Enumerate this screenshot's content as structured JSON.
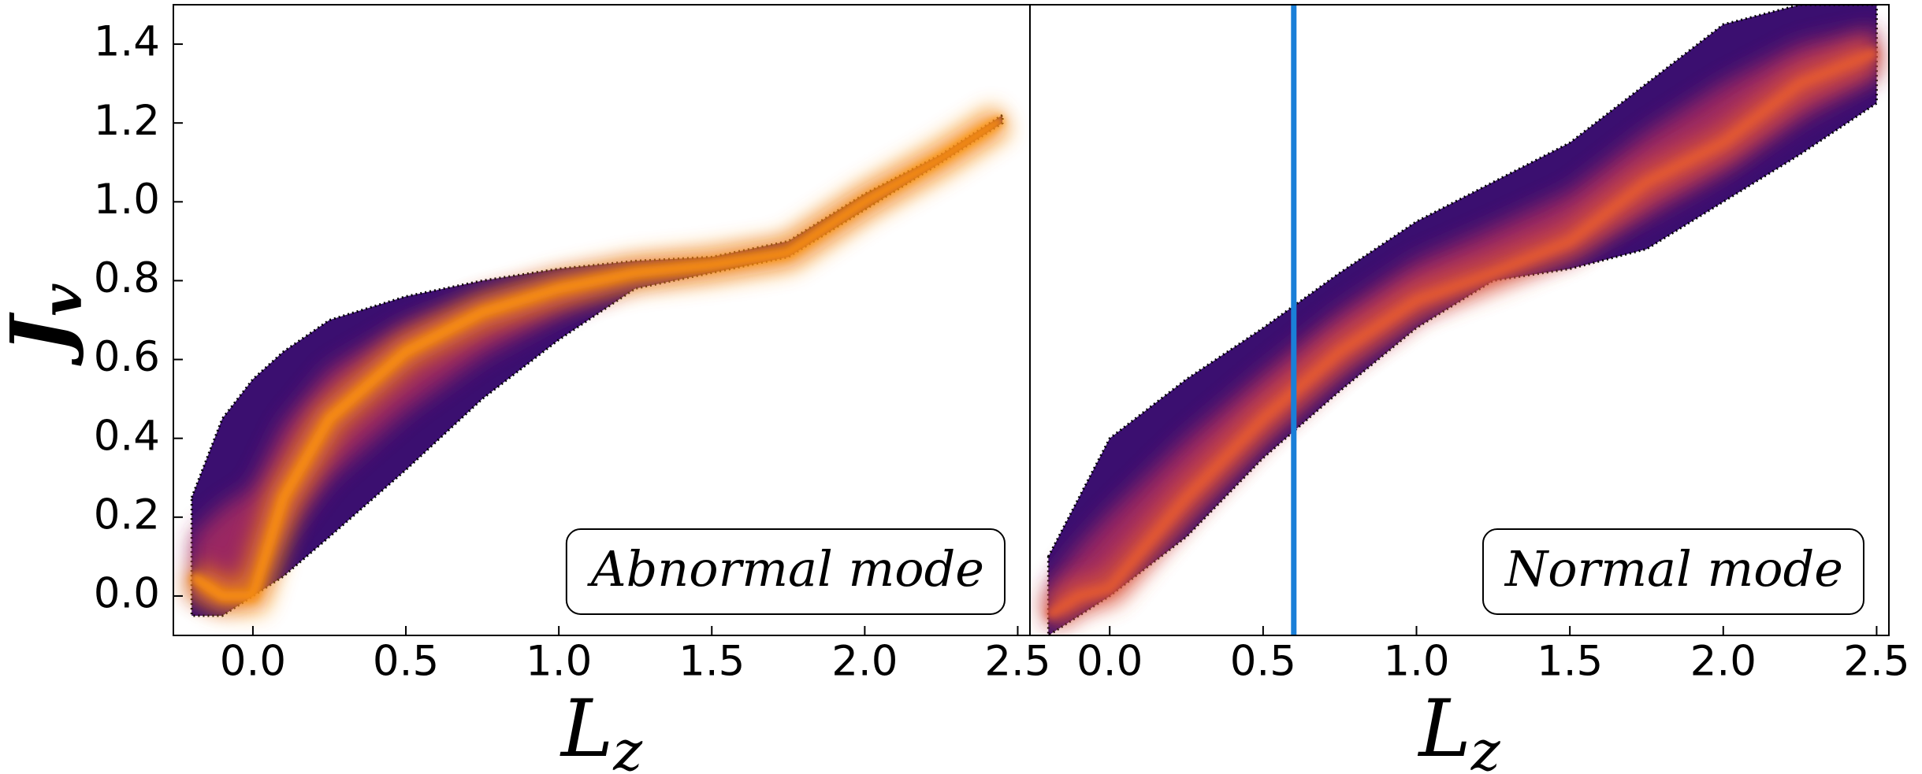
{
  "chart_data": [
    {
      "type": "density",
      "annotation": "Abnormal mode",
      "xlabel": "L",
      "xlabel_subscript": "z",
      "ylabel": "J",
      "ylabel_subscript": "v",
      "xlim": [
        -0.26,
        2.54
      ],
      "ylim": [
        -0.1,
        1.5
      ],
      "xticks": [
        {
          "value": 0,
          "label": "0.0"
        },
        0.5,
        {
          "value": 1,
          "label": "1.0"
        },
        1.5,
        {
          "value": 2,
          "label": "2.0"
        },
        2.5
      ],
      "yticks": [
        {
          "value": 0,
          "label": "0.0"
        },
        0.2,
        0.4,
        0.6,
        0.8,
        {
          "value": 1,
          "label": "1.0"
        },
        1.2,
        1.4
      ],
      "x": [
        -0.2,
        -0.1,
        0,
        0.1,
        0.25,
        0.5,
        0.75,
        1.0,
        1.25,
        1.5,
        1.75,
        2.0,
        2.25,
        2.45
      ],
      "upper": [
        0.25,
        0.45,
        0.55,
        0.62,
        0.7,
        0.76,
        0.8,
        0.83,
        0.85,
        0.86,
        0.9,
        1.02,
        1.12,
        1.22
      ],
      "ridge": [
        0.05,
        0.0,
        0.0,
        0.25,
        0.45,
        0.62,
        0.72,
        0.78,
        0.82,
        0.84,
        0.87,
        1.0,
        1.11,
        1.21
      ],
      "lower": [
        -0.05,
        -0.05,
        0.0,
        0.05,
        0.15,
        0.32,
        0.5,
        0.65,
        0.78,
        0.82,
        0.86,
        0.98,
        1.1,
        1.2
      ],
      "envelope_color": "#3b0f70",
      "ridge_color": "#f98e09"
    },
    {
      "type": "density",
      "annotation": "Normal mode",
      "xlabel": "L",
      "xlabel_subscript": "z",
      "xlim": [
        -0.26,
        2.54
      ],
      "ylim": [
        -0.1,
        1.5
      ],
      "xticks": [
        {
          "value": 0,
          "label": "0.0"
        },
        0.5,
        {
          "value": 1,
          "label": "1.0"
        },
        1.5,
        {
          "value": 2,
          "label": "2.0"
        },
        2.5
      ],
      "x": [
        -0.2,
        -0.1,
        0,
        0.25,
        0.5,
        0.75,
        1.0,
        1.25,
        1.5,
        1.75,
        2.0,
        2.25,
        2.5
      ],
      "upper": [
        0.1,
        0.25,
        0.4,
        0.55,
        0.68,
        0.82,
        0.95,
        1.05,
        1.15,
        1.3,
        1.45,
        1.5,
        1.5
      ],
      "ridge": [
        -0.05,
        0.0,
        0.02,
        0.25,
        0.45,
        0.62,
        0.75,
        0.82,
        0.9,
        1.05,
        1.15,
        1.3,
        1.38
      ],
      "lower": [
        -0.1,
        -0.05,
        0.0,
        0.15,
        0.35,
        0.52,
        0.68,
        0.8,
        0.83,
        0.88,
        1.0,
        1.12,
        1.25
      ],
      "envelope_color": "#3b0f70",
      "ridge_color": "#e35932",
      "vline": 0.6,
      "vline_color": "#1a7fd8"
    }
  ]
}
